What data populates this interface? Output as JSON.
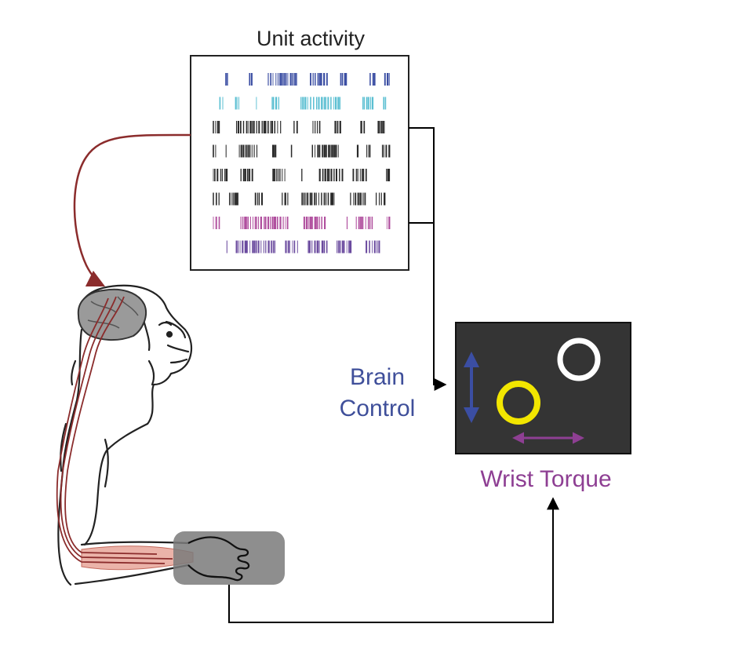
{
  "labels": {
    "unit_activity": "Unit activity",
    "brain_control_line1": "Brain",
    "brain_control_line2": "Control",
    "wrist_torque": "Wrist Torque"
  },
  "colors": {
    "raster_rows": [
      "#3b4ea3",
      "#5bbfd2",
      "#2a2a2a",
      "#2a2a2a",
      "#2a2a2a",
      "#2a2a2a",
      "#b04f9e",
      "#6a4a9e"
    ],
    "brain_control_text": "#3f4f9a",
    "wrist_torque_text": "#8e3f93",
    "screen_bg": "#343434",
    "target_white": "#ffffff",
    "cursor_yellow": "#f2e600",
    "vertical_arrow": "#3b4ea3",
    "horizontal_arrow": "#8e3f93",
    "neural_wire": "#8b2c2c",
    "hand_box": "#8a8a8a"
  },
  "icons": {
    "monkey": "monkey-sketch-icon",
    "brain": "brain-icon",
    "forearm_muscle": "muscle-icon",
    "hand": "hand-icon",
    "vertical_arrow": "double-arrow-vertical-icon",
    "horizontal_arrow": "double-arrow-horizontal-icon"
  }
}
